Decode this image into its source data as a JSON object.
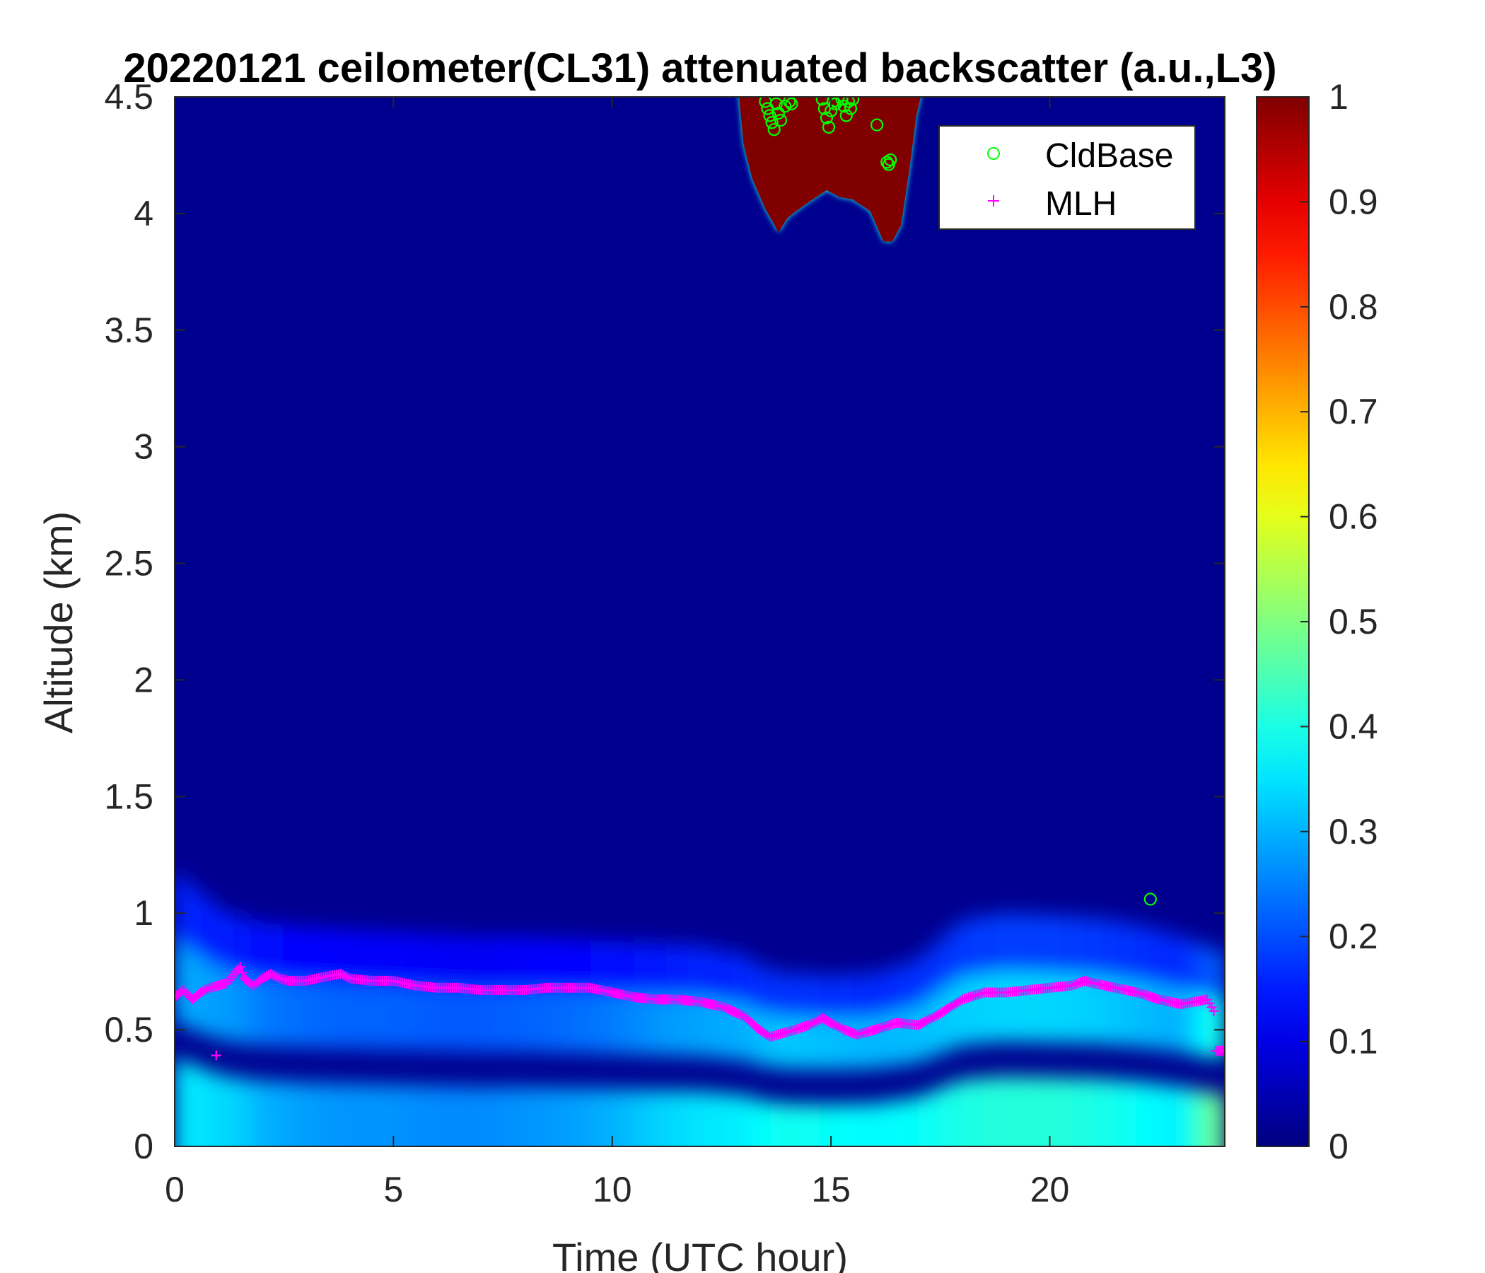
{
  "chart_data": {
    "type": "heatmap",
    "title": "20220121 ceilometer(CL31) attenuated backscatter (a.u.,L3)",
    "xlabel": "Time (UTC hour)",
    "ylabel": "Altitude (km)",
    "xlim": [
      0,
      24
    ],
    "ylim": [
      0,
      4.5
    ],
    "xticks": [
      "0",
      "5",
      "10",
      "15",
      "20"
    ],
    "yticks": [
      "0",
      "0.5",
      "1",
      "1.5",
      "2",
      "2.5",
      "3",
      "3.5",
      "4",
      "4.5"
    ],
    "colorbar": {
      "clim": [
        0,
        1
      ],
      "ticks": [
        "0",
        "0.1",
        "0.2",
        "0.3",
        "0.4",
        "0.5",
        "0.6",
        "0.7",
        "0.8",
        "0.9",
        "1"
      ],
      "colormap": "jet"
    },
    "legend": {
      "placement": "top-right",
      "entries": [
        {
          "name": "CldBase",
          "marker": "circle",
          "color": "#00ff00"
        },
        {
          "name": "MLH",
          "marker": "plus",
          "color": "#ff00ff"
        }
      ]
    },
    "background_color": "#00008f",
    "cloud_color": "#800000",
    "boundary_layer_profile": {
      "x": [
        0,
        0.5,
        1,
        1.5,
        2,
        3,
        4,
        5,
        6,
        7,
        8,
        9,
        10,
        11,
        12,
        13,
        13.5,
        14,
        15,
        16,
        17,
        18,
        19,
        20,
        21,
        22,
        23,
        23.5,
        24
      ],
      "top_km": [
        1.18,
        1.1,
        1.02,
        0.98,
        0.96,
        0.94,
        0.93,
        0.92,
        0.91,
        0.9,
        0.9,
        0.89,
        0.88,
        0.87,
        0.86,
        0.82,
        0.76,
        0.74,
        0.73,
        0.74,
        0.8,
        0.97,
        1.0,
        0.99,
        0.98,
        0.95,
        0.9,
        0.86,
        0.83
      ],
      "intensity": [
        0.36,
        0.35,
        0.34,
        0.33,
        0.3,
        0.28,
        0.27,
        0.27,
        0.26,
        0.26,
        0.27,
        0.28,
        0.3,
        0.33,
        0.35,
        0.36,
        0.38,
        0.39,
        0.38,
        0.37,
        0.38,
        0.4,
        0.41,
        0.41,
        0.4,
        0.38,
        0.36,
        0.45,
        0.5
      ]
    },
    "cloud_region": {
      "x": [
        12.9,
        13.0,
        13.2,
        13.5,
        13.8,
        14.0,
        14.2,
        14.5,
        14.9,
        15.2,
        15.5,
        15.9,
        16.2,
        16.4,
        16.6,
        16.8,
        16.95,
        17.05
      ],
      "bottom_km": [
        4.5,
        4.3,
        4.15,
        4.02,
        3.92,
        3.98,
        4.01,
        4.05,
        4.1,
        4.07,
        4.06,
        4.01,
        3.88,
        3.88,
        3.95,
        4.2,
        4.42,
        4.5
      ]
    },
    "series": [
      {
        "name": "MLH",
        "x": [
          0,
          0.2,
          0.4,
          0.6,
          0.8,
          1.0,
          1.2,
          1.4,
          1.5,
          1.6,
          1.8,
          2.0,
          2.2,
          2.4,
          2.6,
          3.0,
          3.5,
          3.8,
          4.0,
          4.5,
          5.0,
          5.5,
          6.0,
          6.5,
          7.0,
          7.5,
          8.0,
          8.5,
          9.0,
          9.5,
          10.0,
          10.5,
          11.0,
          11.5,
          12.0,
          12.5,
          13.0,
          13.3,
          13.6,
          14.0,
          14.5,
          14.8,
          15.0,
          15.3,
          15.6,
          16.0,
          16.5,
          17.0,
          17.5,
          18.0,
          18.5,
          19.0,
          19.5,
          20.0,
          20.5,
          20.8,
          21.0,
          21.5,
          22.0,
          22.5,
          23.0,
          23.3,
          23.6,
          23.75,
          23.8,
          24.0
        ],
        "y": [
          0.64,
          0.67,
          0.63,
          0.66,
          0.68,
          0.69,
          0.7,
          0.75,
          0.77,
          0.72,
          0.69,
          0.72,
          0.74,
          0.72,
          0.71,
          0.71,
          0.73,
          0.74,
          0.72,
          0.71,
          0.71,
          0.69,
          0.68,
          0.68,
          0.67,
          0.67,
          0.67,
          0.68,
          0.68,
          0.68,
          0.66,
          0.64,
          0.63,
          0.63,
          0.62,
          0.6,
          0.56,
          0.51,
          0.47,
          0.49,
          0.52,
          0.55,
          0.53,
          0.5,
          0.48,
          0.5,
          0.53,
          0.52,
          0.57,
          0.63,
          0.66,
          0.66,
          0.67,
          0.68,
          0.69,
          0.71,
          0.7,
          0.68,
          0.66,
          0.63,
          0.61,
          0.62,
          0.63,
          0.58,
          0.41,
          0.41
        ]
      },
      {
        "name": "CldBase",
        "x": [
          13.5,
          13.55,
          13.6,
          13.65,
          13.7,
          13.75,
          13.8,
          13.85,
          13.95,
          14.05,
          14.1,
          14.8,
          14.85,
          14.9,
          14.95,
          15.0,
          15.05,
          15.1,
          15.25,
          15.3,
          15.35,
          15.4,
          15.45,
          15.5,
          16.05,
          16.28,
          16.32,
          16.36,
          22.3
        ],
        "y": [
          4.48,
          4.45,
          4.42,
          4.39,
          4.36,
          4.47,
          4.43,
          4.4,
          4.46,
          4.48,
          4.47,
          4.49,
          4.45,
          4.41,
          4.37,
          4.44,
          4.48,
          4.47,
          4.49,
          4.46,
          4.42,
          4.48,
          4.45,
          4.49,
          4.38,
          4.22,
          4.21,
          4.23,
          1.06
        ]
      }
    ]
  }
}
